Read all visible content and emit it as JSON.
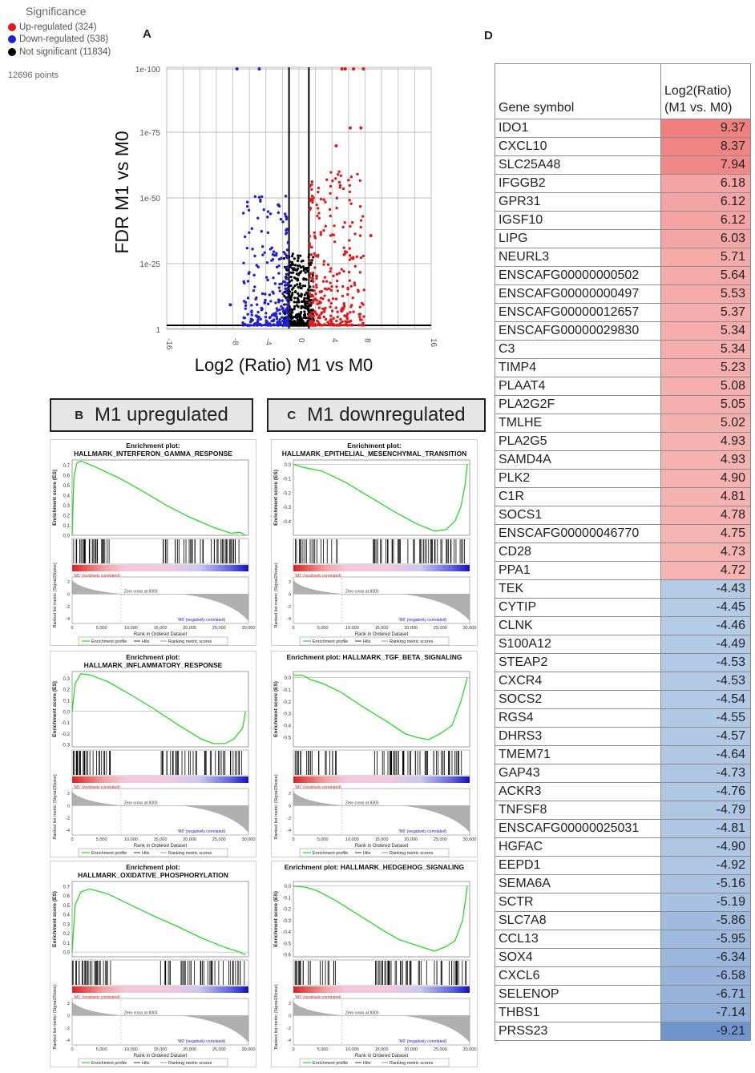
{
  "panel_letters": {
    "a": "A",
    "b": "B",
    "c": "C",
    "d": "D"
  },
  "volcano": {
    "legend_title": "Significance",
    "legend": [
      {
        "label": "Up-regulated (324)",
        "color": "#e31a1c"
      },
      {
        "label": "Down-regulated (538)",
        "color": "#1f1fd6"
      },
      {
        "label": "Not significant (11834)",
        "color": "#000000"
      }
    ],
    "points_label": "12696 points",
    "y_axis_title": "FDR M1 vs M0",
    "x_axis_title": "Log2 (Ratio) M1 vs M0",
    "y_ticks": [
      "1e-100",
      "1e-75",
      "1e-50",
      "1e-25",
      "1"
    ],
    "x_ticks": [
      "-16",
      "-8",
      "-4",
      "0",
      "4",
      "8",
      "16"
    ],
    "colors": {
      "up": "#e31a1c",
      "down": "#1f1fd6",
      "ns": "#000000"
    }
  },
  "panel_b_label": "M1 upregulated",
  "panel_c_label": "M1 downregulated",
  "gsea_common": {
    "es_ylabel": "Enrichment score (ES)",
    "metric_ylabel": "Ranked list metric (Signal2Noise)",
    "xlabel": "Rank in Ordered Dataset",
    "pos_label": "'M1' (positively correlated)",
    "neg_label": "'M0' (negatively correlated)",
    "zero_cross": "Zero cross at 8303",
    "legend": [
      "Enrichment profile",
      "Hits",
      "Ranking metric scores"
    ],
    "x_ticks": [
      "0",
      "5,000",
      "10,000",
      "15,000",
      "20,000",
      "25,000",
      "30,000"
    ],
    "metric_ticks": [
      "2",
      "0",
      "-2",
      "-4"
    ]
  },
  "gsea_plots": [
    {
      "title1": "Enrichment plot:",
      "title2": "HALLMARK_INTERFERON_GAMMA_RESPONSE",
      "yticks": [
        "0.7",
        "0.6",
        "0.5",
        "0.4",
        "0.3",
        "0.2",
        "0.1",
        "0.0"
      ],
      "ymin": 0.0,
      "ymax": 0.75,
      "curve": [
        [
          0,
          0.0
        ],
        [
          300,
          0.58
        ],
        [
          800,
          0.72
        ],
        [
          1500,
          0.74
        ],
        [
          4000,
          0.68
        ],
        [
          8000,
          0.57
        ],
        [
          12000,
          0.44
        ],
        [
          16000,
          0.3
        ],
        [
          20000,
          0.18
        ],
        [
          24000,
          0.08
        ],
        [
          27000,
          0.02
        ],
        [
          28500,
          0.03
        ],
        [
          29500,
          0.0
        ]
      ]
    },
    {
      "title1": "Enrichment plot:",
      "title2": "HALLMARK_INFLAMMATORY_RESPONSE",
      "yticks": [
        "0.3",
        "0.2",
        "0.1",
        "0.0",
        "-0.1",
        "-0.2",
        "-0.3"
      ],
      "ymin": -0.32,
      "ymax": 0.36,
      "curve": [
        [
          0,
          0.0
        ],
        [
          500,
          0.25
        ],
        [
          1500,
          0.34
        ],
        [
          3000,
          0.33
        ],
        [
          6000,
          0.27
        ],
        [
          10000,
          0.15
        ],
        [
          14000,
          0.02
        ],
        [
          18000,
          -0.12
        ],
        [
          22000,
          -0.25
        ],
        [
          24000,
          -0.29
        ],
        [
          26000,
          -0.29
        ],
        [
          27500,
          -0.25
        ],
        [
          29000,
          -0.15
        ],
        [
          29500,
          0.0
        ]
      ]
    },
    {
      "title1": "Enrichment plot:",
      "title2": "HALLMARK_OXIDATIVE_PHOSPHORYLATION",
      "yticks": [
        "0.7",
        "0.6",
        "0.5",
        "0.4",
        "0.3",
        "0.2",
        "0.1",
        "0.0"
      ],
      "ymin": -0.05,
      "ymax": 0.75,
      "curve": [
        [
          0,
          0.0
        ],
        [
          500,
          0.5
        ],
        [
          1500,
          0.64
        ],
        [
          3000,
          0.67
        ],
        [
          6000,
          0.62
        ],
        [
          10000,
          0.5
        ],
        [
          14000,
          0.38
        ],
        [
          18000,
          0.27
        ],
        [
          22000,
          0.15
        ],
        [
          26000,
          0.05
        ],
        [
          28500,
          0.0
        ],
        [
          29500,
          -0.03
        ]
      ]
    },
    {
      "title1": "Enrichment plot:",
      "title2": "HALLMARK_EPITHELIAL_MESENCHYMAL_TRANSITION",
      "yticks": [
        "0.0",
        "-0.1",
        "-0.2",
        "-0.3",
        "-0.4"
      ],
      "ymin": -0.5,
      "ymax": 0.03,
      "curve": [
        [
          0,
          0.0
        ],
        [
          1500,
          -0.02
        ],
        [
          5000,
          -0.05
        ],
        [
          9000,
          -0.13
        ],
        [
          13000,
          -0.23
        ],
        [
          17000,
          -0.33
        ],
        [
          21000,
          -0.42
        ],
        [
          24000,
          -0.47
        ],
        [
          26000,
          -0.46
        ],
        [
          27500,
          -0.4
        ],
        [
          28500,
          -0.3
        ],
        [
          29200,
          -0.15
        ],
        [
          29600,
          0.0
        ]
      ]
    },
    {
      "title1": "Enrichment plot: HALLMARK_TGF_BETA_SIGNALING",
      "title2": "",
      "yticks": [
        "0.0",
        "-0.1",
        "-0.2",
        "-0.3",
        "-0.4",
        "-0.5"
      ],
      "ymin": -0.58,
      "ymax": 0.05,
      "curve": [
        [
          0,
          0.02
        ],
        [
          1500,
          0.02
        ],
        [
          3000,
          -0.02
        ],
        [
          5000,
          -0.05
        ],
        [
          8000,
          -0.12
        ],
        [
          12000,
          -0.25
        ],
        [
          16000,
          -0.37
        ],
        [
          19000,
          -0.47
        ],
        [
          21000,
          -0.5
        ],
        [
          23000,
          -0.52
        ],
        [
          25000,
          -0.47
        ],
        [
          27000,
          -0.4
        ],
        [
          28500,
          -0.2
        ],
        [
          29600,
          0.0
        ]
      ]
    },
    {
      "title1": "Enrichment plot: HALLMARK_HEDGEHOG_SIGNALING",
      "title2": "",
      "yticks": [
        "0.0",
        "-0.1",
        "-0.2",
        "-0.3",
        "-0.4",
        "-0.5",
        "-0.6"
      ],
      "ymin": -0.62,
      "ymax": 0.04,
      "curve": [
        [
          0,
          0.0
        ],
        [
          2000,
          -0.01
        ],
        [
          4000,
          -0.04
        ],
        [
          7000,
          -0.12
        ],
        [
          11000,
          -0.25
        ],
        [
          15000,
          -0.38
        ],
        [
          18000,
          -0.47
        ],
        [
          21000,
          -0.52
        ],
        [
          24000,
          -0.57
        ],
        [
          26000,
          -0.53
        ],
        [
          27500,
          -0.48
        ],
        [
          28800,
          -0.3
        ],
        [
          29600,
          0.0
        ]
      ]
    }
  ],
  "gene_table": {
    "header_col1": "Gene symbol",
    "header_col2_line1": "Log2(Ratio)",
    "header_col2_line2": "(M1 vs. M0)",
    "rows": [
      {
        "gene": "IDO1",
        "value": "9.37",
        "color": "#f08080"
      },
      {
        "gene": "CXCL10",
        "value": "8.37",
        "color": "#f08484"
      },
      {
        "gene": "SLC25A48",
        "value": "7.94",
        "color": "#f18888"
      },
      {
        "gene": "IFGGB2",
        "value": "6.18",
        "color": "#f4a4a4"
      },
      {
        "gene": "GPR31",
        "value": "6.12",
        "color": "#f4a4a4"
      },
      {
        "gene": "IGSF10",
        "value": "6.12",
        "color": "#f4a4a4"
      },
      {
        "gene": "LIPG",
        "value": "6.03",
        "color": "#f4a6a6"
      },
      {
        "gene": "NEURL3",
        "value": "5.71",
        "color": "#f5a9a9"
      },
      {
        "gene": "ENSCAFG00000000502",
        "value": "5.64",
        "color": "#f5aaaa"
      },
      {
        "gene": "ENSCAFG00000000497",
        "value": "5.53",
        "color": "#f5abab"
      },
      {
        "gene": "ENSCAFG00000012657",
        "value": "5.37",
        "color": "#f5adad"
      },
      {
        "gene": "ENSCAFG00000029830",
        "value": "5.34",
        "color": "#f5adad"
      },
      {
        "gene": "C3",
        "value": "5.34",
        "color": "#f5adad"
      },
      {
        "gene": "TIMP4",
        "value": "5.23",
        "color": "#f5aeae"
      },
      {
        "gene": "PLAAT4",
        "value": "5.08",
        "color": "#f6afaf"
      },
      {
        "gene": "PLA2G2F",
        "value": "5.05",
        "color": "#f6afaf"
      },
      {
        "gene": "TMLHE",
        "value": "5.02",
        "color": "#f6b0b0"
      },
      {
        "gene": "PLA2G5",
        "value": "4.93",
        "color": "#f6b1b1"
      },
      {
        "gene": "SAMD4A",
        "value": "4.93",
        "color": "#f6b1b1"
      },
      {
        "gene": "PLK2",
        "value": "4.90",
        "color": "#f6b1b1"
      },
      {
        "gene": "C1R",
        "value": "4.81",
        "color": "#f6b2b2"
      },
      {
        "gene": "SOCS1",
        "value": "4.78",
        "color": "#f6b2b2"
      },
      {
        "gene": "ENSCAFG00000046770",
        "value": "4.75",
        "color": "#f6b3b3"
      },
      {
        "gene": "CD28",
        "value": "4.73",
        "color": "#f6b3b3"
      },
      {
        "gene": "PPA1",
        "value": "4.72",
        "color": "#f6b3b3"
      },
      {
        "gene": "TEK",
        "value": "-4.43",
        "color": "#b4cbe6"
      },
      {
        "gene": "CYTIP",
        "value": "-4.45",
        "color": "#b4cbe6"
      },
      {
        "gene": "CLNK",
        "value": "-4.46",
        "color": "#b4cbe6"
      },
      {
        "gene": "S100A12",
        "value": "-4.49",
        "color": "#b3cae6"
      },
      {
        "gene": "STEAP2",
        "value": "-4.53",
        "color": "#b3cae6"
      },
      {
        "gene": "CXCR4",
        "value": "-4.53",
        "color": "#b3cae6"
      },
      {
        "gene": "SOCS2",
        "value": "-4.54",
        "color": "#b3cae6"
      },
      {
        "gene": "RGS4",
        "value": "-4.55",
        "color": "#b2c9e5"
      },
      {
        "gene": "DHRS3",
        "value": "-4.57",
        "color": "#b2c9e5"
      },
      {
        "gene": "TMEM71",
        "value": "-4.64",
        "color": "#b1c8e5"
      },
      {
        "gene": "GAP43",
        "value": "-4.73",
        "color": "#b0c7e4"
      },
      {
        "gene": "ACKR3",
        "value": "-4.76",
        "color": "#afc7e4"
      },
      {
        "gene": "TNFSF8",
        "value": "-4.79",
        "color": "#afc7e4"
      },
      {
        "gene": "ENSCAFG00000025031",
        "value": "-4.81",
        "color": "#afc6e4"
      },
      {
        "gene": "HGFAC",
        "value": "-4.90",
        "color": "#aec5e3"
      },
      {
        "gene": "EEPD1",
        "value": "-4.92",
        "color": "#aec5e3"
      },
      {
        "gene": "SEMA6A",
        "value": "-5.16",
        "color": "#abc2e2"
      },
      {
        "gene": "SCTR",
        "value": "-5.19",
        "color": "#aac2e2"
      },
      {
        "gene": "SLC7A8",
        "value": "-5.86",
        "color": "#a1bbdf"
      },
      {
        "gene": "CCL13",
        "value": "-5.95",
        "color": "#a0badf"
      },
      {
        "gene": "SOX4",
        "value": "-6.34",
        "color": "#9bb6dd"
      },
      {
        "gene": "CXCL6",
        "value": "-6.58",
        "color": "#98b4dc"
      },
      {
        "gene": "SELENOP",
        "value": "-6.71",
        "color": "#97b3db"
      },
      {
        "gene": "THBS1",
        "value": "-7.14",
        "color": "#92afd9"
      },
      {
        "gene": "PRSS23",
        "value": "-9.21",
        "color": "#6f95cc"
      }
    ]
  }
}
